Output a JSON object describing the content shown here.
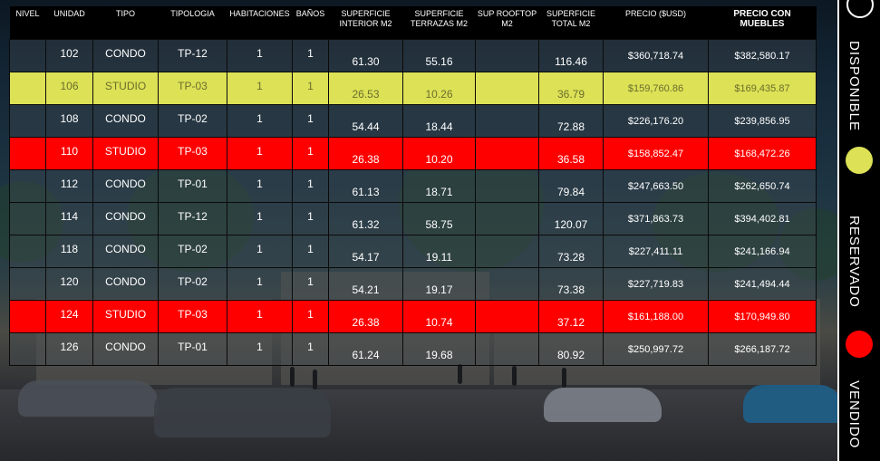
{
  "columns": {
    "nivel": "NIVEL",
    "unidad": "UNIDAD",
    "tipo": "TIPO",
    "tipologia": "TIPOLOGIA",
    "habitaciones": "HABITACIONES",
    "banos": "BAÑOS",
    "sup_interior_1": "SUPERFICIE",
    "sup_interior_2": "INTERIOR M2",
    "sup_terrazas_1": "SUPERFICIE",
    "sup_terrazas_2": "TERRAZAS M2",
    "sup_rooftop_1": "SUP ROOFTOP",
    "sup_rooftop_2": "M2",
    "sup_total_1": "SUPERFICIE",
    "sup_total_2": "TOTAL M2",
    "precio": "PRECIO  ($USD)",
    "precio_muebles_1": "PRECIO CON",
    "precio_muebles_2": "MUEBLES"
  },
  "rows": [
    {
      "status": "disponible",
      "unidad": "102",
      "tipo": "CONDO",
      "tipologia": "TP-12",
      "hab": "1",
      "banos": "1",
      "interior": "61.30",
      "terrazas": "55.16",
      "rooftop": "",
      "total": "116.46",
      "precio": "$360,718.74",
      "precio_muebles": "$382,580.17"
    },
    {
      "status": "reservado",
      "unidad": "106",
      "tipo": "STUDIO",
      "tipologia": "TP-03",
      "hab": "1",
      "banos": "1",
      "interior": "26.53",
      "terrazas": "10.26",
      "rooftop": "",
      "total": "36.79",
      "precio": "$159,760.86",
      "precio_muebles": "$169,435.87"
    },
    {
      "status": "disponible",
      "unidad": "108",
      "tipo": "CONDO",
      "tipologia": "TP-02",
      "hab": "1",
      "banos": "1",
      "interior": "54.44",
      "terrazas": "18.44",
      "rooftop": "",
      "total": "72.88",
      "precio": "$226,176.20",
      "precio_muebles": "$239,856.95"
    },
    {
      "status": "vendido",
      "unidad": "110",
      "tipo": "STUDIO",
      "tipologia": "TP-03",
      "hab": "1",
      "banos": "1",
      "interior": "26.38",
      "terrazas": "10.20",
      "rooftop": "",
      "total": "36.58",
      "precio": "$158,852.47",
      "precio_muebles": "$168,472.26"
    },
    {
      "status": "disponible",
      "unidad": "112",
      "tipo": "CONDO",
      "tipologia": "TP-01",
      "hab": "1",
      "banos": "1",
      "interior": "61.13",
      "terrazas": "18.71",
      "rooftop": "",
      "total": "79.84",
      "precio": "$247,663.50",
      "precio_muebles": "$262,650.74"
    },
    {
      "status": "disponible",
      "unidad": "114",
      "tipo": "CONDO",
      "tipologia": "TP-12",
      "hab": "1",
      "banos": "1",
      "interior": "61.32",
      "terrazas": "58.75",
      "rooftop": "",
      "total": "120.07",
      "precio": "$371,863.73",
      "precio_muebles": "$394,402.81"
    },
    {
      "status": "disponible",
      "unidad": "118",
      "tipo": "CONDO",
      "tipologia": "TP-02",
      "hab": "1",
      "banos": "1",
      "interior": "54.17",
      "terrazas": "19.11",
      "rooftop": "",
      "total": "73.28",
      "precio": "$227,411.11",
      "precio_muebles": "$241,166.94"
    },
    {
      "status": "disponible",
      "unidad": "120",
      "tipo": "CONDO",
      "tipologia": "TP-02",
      "hab": "1",
      "banos": "1",
      "interior": "54.21",
      "terrazas": "19.17",
      "rooftop": "",
      "total": "73.38",
      "precio": "$227,719.83",
      "precio_muebles": "$241,494.44"
    },
    {
      "status": "vendido",
      "unidad": "124",
      "tipo": "STUDIO",
      "tipologia": "TP-03",
      "hab": "1",
      "banos": "1",
      "interior": "26.38",
      "terrazas": "10.74",
      "rooftop": "",
      "total": "37.12",
      "precio": "$161,188.00",
      "precio_muebles": "$170,949.80"
    },
    {
      "status": "disponible",
      "unidad": "126",
      "tipo": "CONDO",
      "tipologia": "TP-01",
      "hab": "1",
      "banos": "1",
      "interior": "61.24",
      "terrazas": "19.68",
      "rooftop": "",
      "total": "80.92",
      "precio": "$250,997.72",
      "precio_muebles": "$266,187.72"
    }
  ],
  "legend": {
    "disponible": "DISPONIBLE",
    "reservado": "RESERVADO",
    "vendido": "VENDIDO",
    "colors": {
      "disponible": "#ffffff",
      "reservado": "#dce156",
      "vendido": "#ff0000"
    }
  }
}
